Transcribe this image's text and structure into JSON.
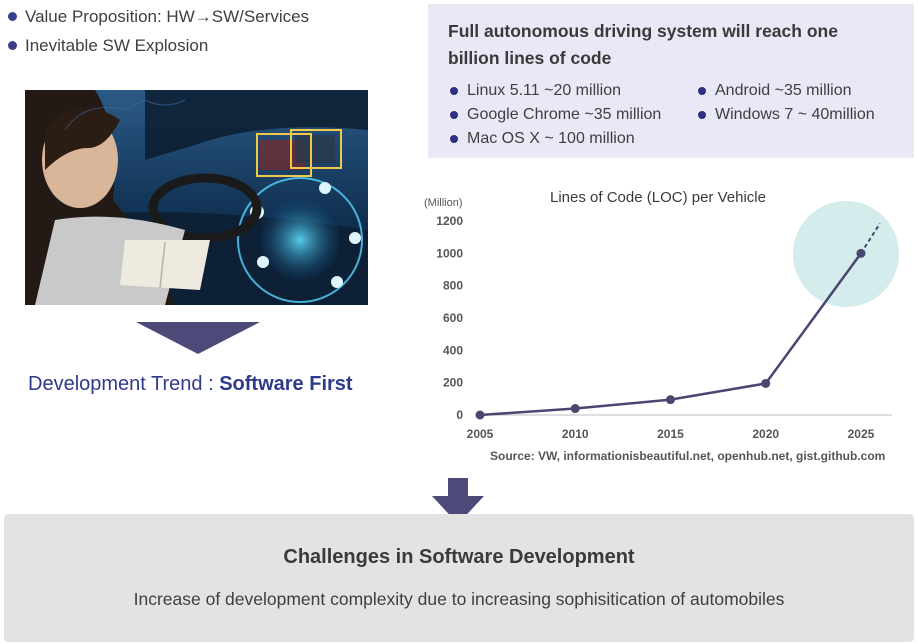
{
  "top_bullets": [
    "Value Proposition: HW→SW/Services",
    "Inevitable SW Explosion"
  ],
  "trend": {
    "prefix": "Development Trend : ",
    "emphasis": "Software First"
  },
  "info_box": {
    "title_line1": "Full autonomous driving system will reach one",
    "title_line2": "billion lines of code",
    "items": [
      "Linux 5.11 ~20 million",
      "Google Chrome ~35 million",
      "Mac OS X ~ 100 million",
      "Android ~35 million",
      "Windows 7 ~ 40million"
    ]
  },
  "chart_data": {
    "type": "line",
    "title": "Lines of Code (LOC) per Vehicle",
    "ylabel": "(Million)",
    "x": [
      2005,
      2010,
      2015,
      2020,
      2025
    ],
    "series": [
      {
        "values": [
          0,
          40,
          95,
          195,
          1000
        ]
      }
    ],
    "projection": {
      "from": [
        2025,
        1000
      ],
      "to": [
        2026,
        1185
      ]
    },
    "yticks": [
      0,
      200,
      400,
      600,
      800,
      1000,
      1200
    ],
    "ylim": [
      0,
      1200
    ],
    "xlim": [
      2005,
      2026
    ],
    "grid": false,
    "source": "Source: VW, informationisbeautiful.net, openhub.net, gist.github.com",
    "colors": {
      "line": "#4a4670",
      "highlight": "#d4ecec"
    }
  },
  "bottom": {
    "title": "Challenges in Software Development",
    "subtitle": "Increase of development complexity due to increasing sophisitication of  automobiles"
  }
}
